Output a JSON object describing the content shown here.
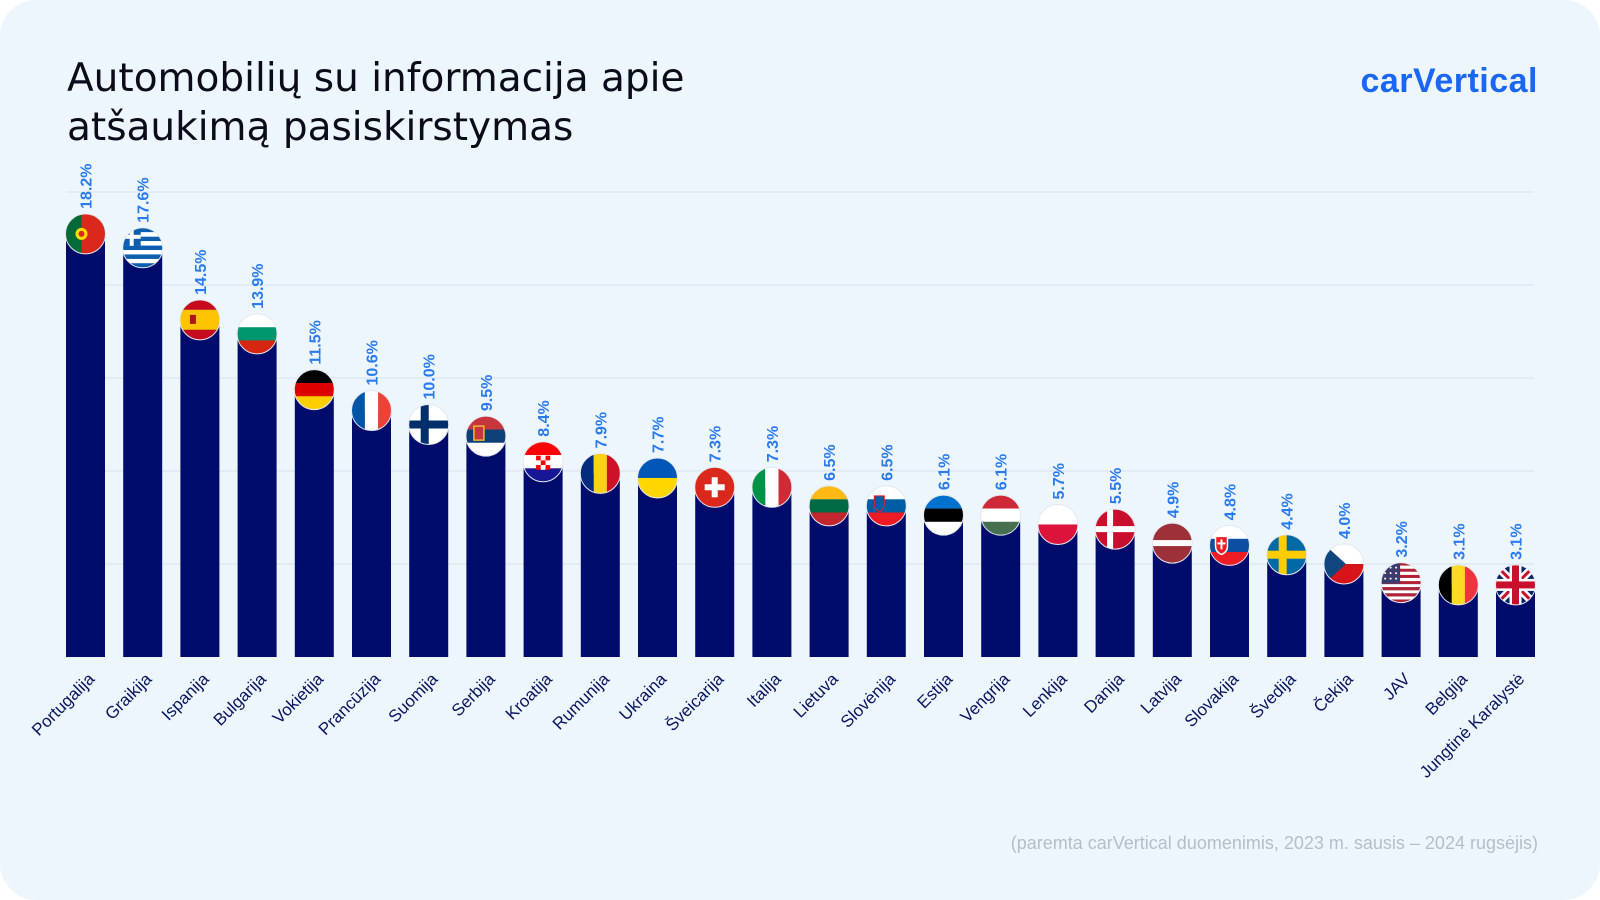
{
  "title_lines": [
    "Automobilių su informacija apie",
    "atšaukimą pasiskirstymas"
  ],
  "brand": "carVertical",
  "source_note": "(paremta carVertical duomenimis, 2023 m. sausis – 2024 rugsėjis)",
  "colors": {
    "bar": "#000c6b",
    "value_label": "#2a7bf0",
    "grid": "#d8e3ee",
    "brand": "#1b67f5",
    "background": "#eef6fd"
  },
  "chart_data": {
    "type": "bar",
    "title": "Automobilių su informacija apie atšaukimą pasiskirstymas",
    "xlabel": "",
    "ylabel": "",
    "ylim": [
      0,
      20
    ],
    "grid": true,
    "value_suffix": "%",
    "categories": [
      "Portugalija",
      "Graikija",
      "Ispanija",
      "Bulgarija",
      "Vokietija",
      "Prancūzija",
      "Suomija",
      "Serbija",
      "Kroatija",
      "Rumunija",
      "Ukraina",
      "Šveicarija",
      "Italija",
      "Lietuva",
      "Slovėnija",
      "Estija",
      "Vengrija",
      "Lenkija",
      "Danija",
      "Latvija",
      "Slovakija",
      "Švedija",
      "Čekija",
      "JAV",
      "Belgija",
      "Jungtinė Karalystė"
    ],
    "values": [
      18.2,
      17.6,
      14.5,
      13.9,
      11.5,
      10.6,
      10.0,
      9.5,
      8.4,
      7.9,
      7.7,
      7.3,
      7.3,
      6.5,
      6.5,
      6.1,
      6.1,
      5.7,
      5.5,
      4.9,
      4.8,
      4.4,
      4.0,
      3.2,
      3.1,
      3.1
    ],
    "value_labels": [
      "18.2%",
      "17.6%",
      "14.5%",
      "13.9%",
      "11.5%",
      "10.6%",
      "10.0%",
      "9.5%",
      "8.4%",
      "7.9%",
      "7.7%",
      "7.3%",
      "7.3%",
      "6.5%",
      "6.5%",
      "6.1%",
      "6.1%",
      "5.7%",
      "5.5%",
      "4.9%",
      "4.8%",
      "4.4%",
      "4.0%",
      "3.2%",
      "3.1%",
      "3.1%"
    ],
    "flag_icons": [
      "portugal-flag-icon",
      "greece-flag-icon",
      "spain-flag-icon",
      "bulgaria-flag-icon",
      "germany-flag-icon",
      "france-flag-icon",
      "finland-flag-icon",
      "serbia-flag-icon",
      "croatia-flag-icon",
      "romania-flag-icon",
      "ukraine-flag-icon",
      "switzerland-flag-icon",
      "italy-flag-icon",
      "lithuania-flag-icon",
      "slovenia-flag-icon",
      "estonia-flag-icon",
      "hungary-flag-icon",
      "poland-flag-icon",
      "denmark-flag-icon",
      "latvia-flag-icon",
      "slovakia-flag-icon",
      "sweden-flag-icon",
      "czechia-flag-icon",
      "usa-flag-icon",
      "belgium-flag-icon",
      "uk-flag-icon"
    ]
  }
}
